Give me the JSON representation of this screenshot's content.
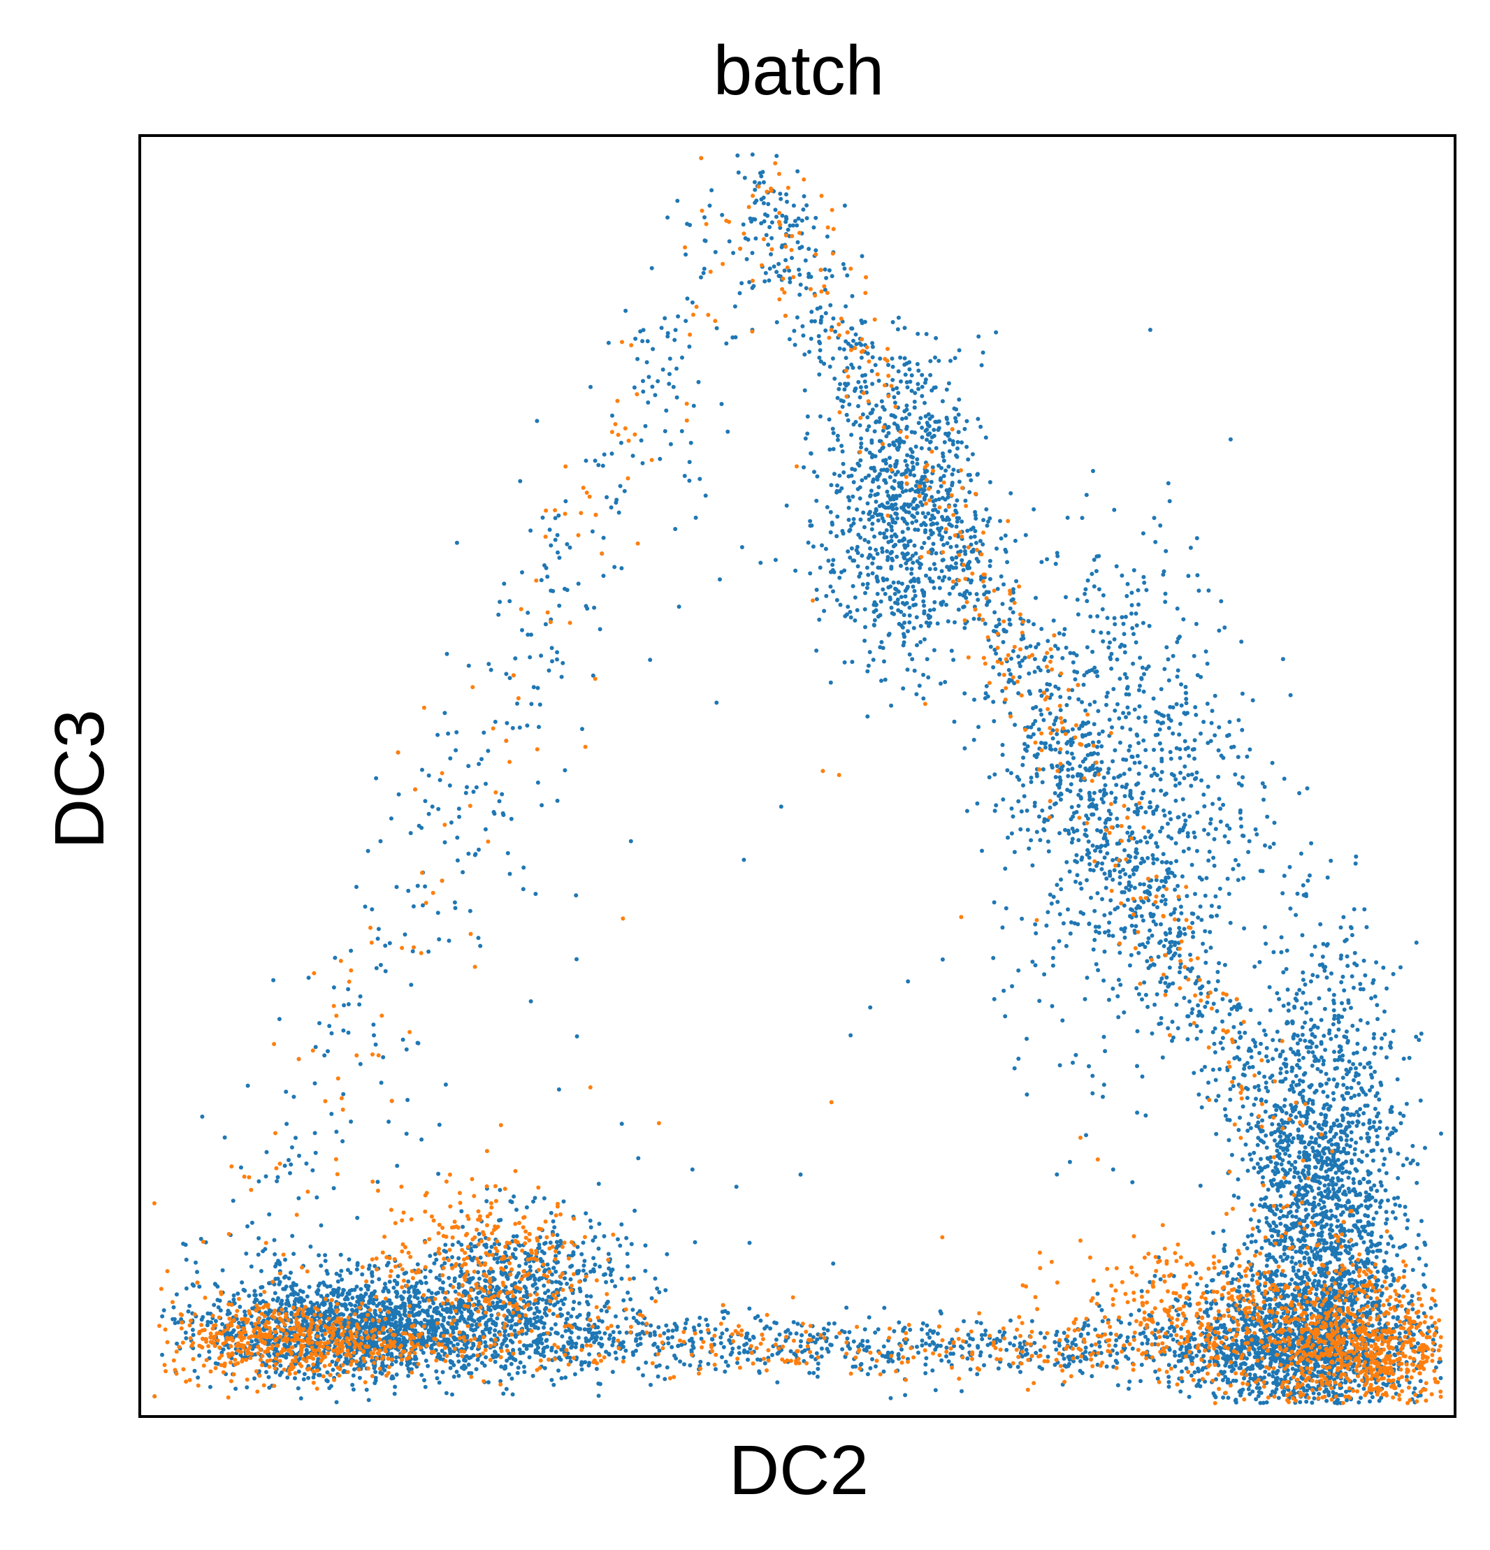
{
  "chart_data": {
    "type": "scatter",
    "title": "batch",
    "xlabel": "DC2",
    "ylabel": "DC3",
    "xlim": [
      0,
      1
    ],
    "ylim": [
      0,
      1
    ],
    "xticks": [],
    "yticks": [],
    "grid": false,
    "legend": "none",
    "series": [
      {
        "color": "#1f77b4",
        "shape": "triangle-density",
        "points_approx": 9000,
        "clusters": [
          {
            "x": 0.17,
            "y": 0.07,
            "n": 1500,
            "sx": 0.06,
            "sy": 0.02
          },
          {
            "x": 0.29,
            "y": 0.1,
            "n": 600,
            "sx": 0.04,
            "sy": 0.03
          },
          {
            "x": 0.58,
            "y": 0.7,
            "n": 800,
            "sx": 0.03,
            "sy": 0.06
          },
          {
            "x": 0.75,
            "y": 0.49,
            "n": 900,
            "sx": 0.05,
            "sy": 0.1
          },
          {
            "x": 0.9,
            "y": 0.16,
            "n": 1800,
            "sx": 0.03,
            "sy": 0.1
          },
          {
            "x": 0.88,
            "y": 0.06,
            "n": 1200,
            "sx": 0.05,
            "sy": 0.03
          }
        ]
      },
      {
        "color": "#ff7f0e",
        "shape": "triangle-density",
        "points_approx": 3000,
        "clusters": [
          {
            "x": 0.12,
            "y": 0.06,
            "n": 500,
            "sx": 0.05,
            "sy": 0.015
          },
          {
            "x": 0.26,
            "y": 0.12,
            "n": 300,
            "sx": 0.04,
            "sy": 0.03
          },
          {
            "x": 0.93,
            "y": 0.05,
            "n": 700,
            "sx": 0.04,
            "sy": 0.025
          },
          {
            "x": 0.82,
            "y": 0.08,
            "n": 400,
            "sx": 0.06,
            "sy": 0.03
          }
        ]
      }
    ],
    "triangle_vertices": [
      [
        0.05,
        0.06
      ],
      [
        0.47,
        0.96
      ],
      [
        0.95,
        0.05
      ]
    ]
  }
}
